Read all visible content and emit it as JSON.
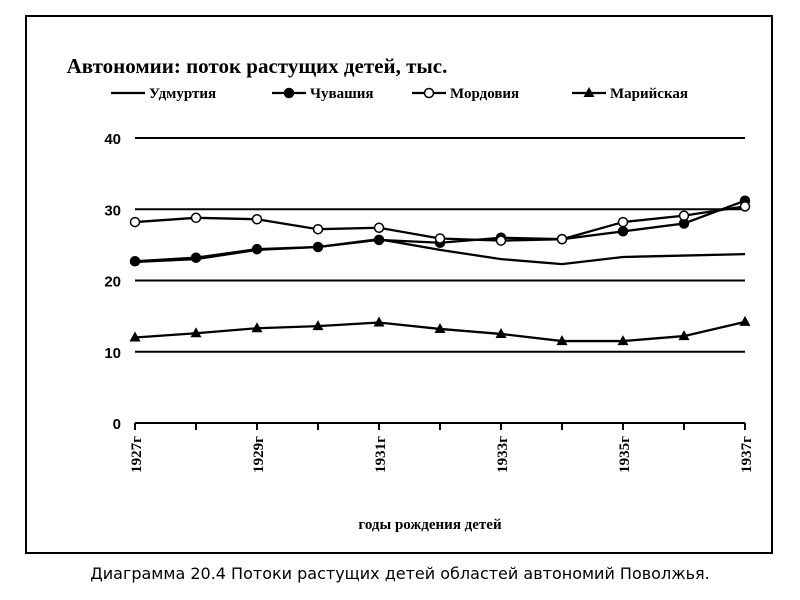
{
  "caption": "Диаграмма 20.4 Потоки растущих детей областей автономий Поволжья.",
  "chart_data": {
    "type": "line",
    "title": "Автономии: поток растущих детей, тыс.",
    "xlabel": "годы рождения детей",
    "ylabel": "",
    "categories": [
      "1927г",
      "1928г",
      "1929г",
      "1930г",
      "1931г",
      "1932г",
      "1933г",
      "1934г",
      "1935г",
      "1936г",
      "1937г"
    ],
    "tick_labels": [
      "1927г",
      "",
      "1929г",
      "",
      "1931г",
      "",
      "1933г",
      "",
      "1935г",
      "",
      "1937г"
    ],
    "ylim": [
      0,
      40
    ],
    "yticks": [
      0,
      10,
      20,
      30,
      40
    ],
    "grid": true,
    "legend_position": "top",
    "series": [
      {
        "name": "Удмуртия",
        "marker": "none",
        "values": [
          22.6,
          23.0,
          24.3,
          24.7,
          25.8,
          24.3,
          23.0,
          22.3,
          23.3,
          23.5,
          23.7
        ]
      },
      {
        "name": "Чувашия",
        "marker": "filled-circle",
        "values": [
          22.7,
          23.2,
          24.4,
          24.7,
          25.7,
          25.3,
          26.0,
          25.8,
          26.9,
          28.0,
          31.2
        ]
      },
      {
        "name": "Мордовия",
        "marker": "open-circle",
        "values": [
          28.2,
          28.8,
          28.6,
          27.2,
          27.4,
          25.9,
          25.6,
          25.8,
          28.2,
          29.1,
          30.4
        ]
      },
      {
        "name": "Марийская",
        "marker": "filled-triangle",
        "values": [
          12.0,
          12.6,
          13.3,
          13.6,
          14.1,
          13.2,
          12.5,
          11.5,
          11.5,
          12.2,
          14.2
        ]
      }
    ]
  }
}
